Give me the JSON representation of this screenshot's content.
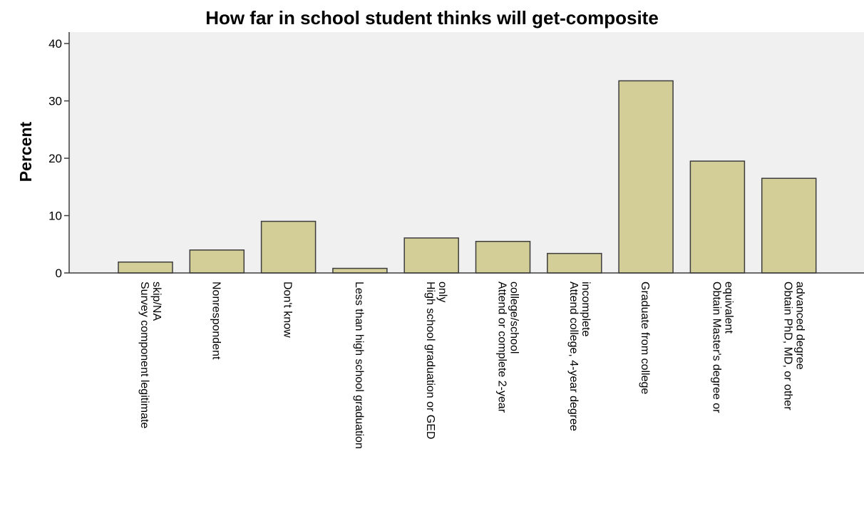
{
  "chart_data": {
    "type": "bar",
    "title": "How far in school student thinks will get-composite",
    "xlabel": "",
    "ylabel": "Percent",
    "ylim": [
      0,
      42
    ],
    "yticks": [
      0,
      10,
      20,
      30,
      40
    ],
    "grid": false,
    "categories": [
      [
        "Survey component legitimate",
        "skip/NA"
      ],
      [
        "Nonrespondent"
      ],
      [
        "Don't know"
      ],
      [
        "Less than high school graduation"
      ],
      [
        "High school graduation or GED",
        "only"
      ],
      [
        "Attend or complete 2-year",
        "college/school"
      ],
      [
        "Attend college, 4-year degree",
        "incomplete"
      ],
      [
        "Graduate from college"
      ],
      [
        "Obtain Master's degree or",
        "equivalent"
      ],
      [
        "Obtain PhD, MD, or other",
        "advanced degree"
      ]
    ],
    "values": [
      1.9,
      4.0,
      9.0,
      0.8,
      6.1,
      5.5,
      3.4,
      33.5,
      19.5,
      16.5
    ],
    "colors": {
      "plot_background": "#f0f0f0",
      "bar_fill": "#d3ce97",
      "bar_stroke": "#3c3c3c",
      "axis": "#3c3c3c"
    }
  }
}
